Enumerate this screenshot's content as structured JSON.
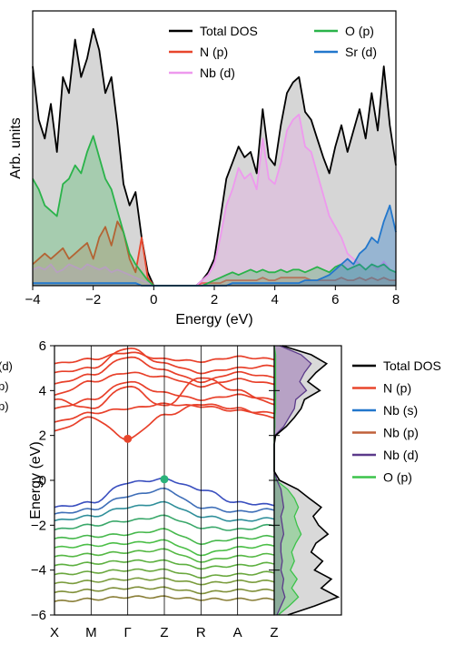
{
  "chart_data": [
    {
      "type": "area",
      "xlabel": "Energy (eV)",
      "ylabel": "Arb. units",
      "xlim": [
        -4,
        8
      ],
      "ylim": [
        0,
        1
      ],
      "xticks": [
        "−4",
        "−2",
        "0",
        "2",
        "4",
        "6",
        "8"
      ],
      "tick_values": [
        -4,
        -2,
        0,
        2,
        4,
        6,
        8
      ],
      "grid": false,
      "legend_position": "top",
      "x": [
        -4.0,
        -3.8,
        -3.6,
        -3.4,
        -3.2,
        -3.0,
        -2.8,
        -2.6,
        -2.4,
        -2.2,
        -2.0,
        -1.8,
        -1.6,
        -1.4,
        -1.2,
        -1.0,
        -0.8,
        -0.6,
        -0.4,
        -0.2,
        0.0,
        0.2,
        0.4,
        0.6,
        0.8,
        1.0,
        1.2,
        1.4,
        1.6,
        1.8,
        2.0,
        2.2,
        2.4,
        2.6,
        2.8,
        3.0,
        3.2,
        3.4,
        3.6,
        3.8,
        4.0,
        4.2,
        4.4,
        4.6,
        4.8,
        5.0,
        5.2,
        5.4,
        5.6,
        5.8,
        6.0,
        6.2,
        6.4,
        6.6,
        6.8,
        7.0,
        7.2,
        7.4,
        7.6,
        7.8,
        8.0
      ],
      "series": [
        {
          "name": "Total DOS",
          "color": "#000000",
          "values": [
            0.82,
            0.62,
            0.55,
            0.68,
            0.5,
            0.78,
            0.72,
            0.92,
            0.78,
            0.85,
            0.96,
            0.88,
            0.72,
            0.78,
            0.6,
            0.38,
            0.3,
            0.35,
            0.18,
            0.05,
            0.0,
            0.0,
            0.0,
            0.0,
            0.0,
            0.0,
            0.0,
            0.0,
            0.02,
            0.05,
            0.1,
            0.25,
            0.4,
            0.46,
            0.52,
            0.48,
            0.5,
            0.42,
            0.66,
            0.48,
            0.45,
            0.6,
            0.72,
            0.76,
            0.78,
            0.65,
            0.62,
            0.55,
            0.48,
            0.42,
            0.52,
            0.6,
            0.5,
            0.58,
            0.66,
            0.55,
            0.72,
            0.58,
            0.82,
            0.6,
            0.45
          ]
        },
        {
          "name": "N (p)",
          "color": "#e8462c",
          "values": [
            0.08,
            0.1,
            0.12,
            0.1,
            0.12,
            0.14,
            0.1,
            0.12,
            0.14,
            0.16,
            0.1,
            0.18,
            0.22,
            0.15,
            0.24,
            0.2,
            0.1,
            0.05,
            0.18,
            0.03,
            0.0,
            0.0,
            0.0,
            0.0,
            0.0,
            0.0,
            0.0,
            0.0,
            0.01,
            0.01,
            0.01,
            0.01,
            0.02,
            0.02,
            0.02,
            0.02,
            0.02,
            0.02,
            0.03,
            0.02,
            0.02,
            0.03,
            0.03,
            0.03,
            0.03,
            0.03,
            0.02,
            0.02,
            0.02,
            0.02,
            0.02,
            0.03,
            0.02,
            0.02,
            0.03,
            0.02,
            0.03,
            0.02,
            0.03,
            0.02,
            0.02
          ]
        },
        {
          "name": "Nb (d)",
          "color": "#ee99ee",
          "values": [
            0.06,
            0.07,
            0.06,
            0.08,
            0.05,
            0.06,
            0.08,
            0.07,
            0.06,
            0.08,
            0.07,
            0.06,
            0.07,
            0.05,
            0.06,
            0.05,
            0.04,
            0.03,
            0.02,
            0.01,
            0.0,
            0.0,
            0.0,
            0.0,
            0.0,
            0.0,
            0.0,
            0.0,
            0.02,
            0.04,
            0.08,
            0.18,
            0.3,
            0.36,
            0.44,
            0.4,
            0.42,
            0.36,
            0.55,
            0.4,
            0.38,
            0.46,
            0.58,
            0.62,
            0.64,
            0.52,
            0.5,
            0.42,
            0.34,
            0.26,
            0.22,
            0.18,
            0.12,
            0.1,
            0.08,
            0.06,
            0.08,
            0.06,
            0.09,
            0.06,
            0.05
          ]
        },
        {
          "name": "O (p)",
          "color": "#2ab34a",
          "values": [
            0.4,
            0.36,
            0.3,
            0.28,
            0.26,
            0.38,
            0.4,
            0.45,
            0.42,
            0.5,
            0.56,
            0.48,
            0.4,
            0.36,
            0.28,
            0.2,
            0.12,
            0.08,
            0.05,
            0.02,
            0.0,
            0.0,
            0.0,
            0.0,
            0.0,
            0.0,
            0.0,
            0.0,
            0.0,
            0.01,
            0.02,
            0.03,
            0.04,
            0.05,
            0.04,
            0.05,
            0.06,
            0.05,
            0.06,
            0.05,
            0.05,
            0.06,
            0.05,
            0.06,
            0.06,
            0.05,
            0.06,
            0.07,
            0.06,
            0.05,
            0.07,
            0.08,
            0.06,
            0.07,
            0.08,
            0.06,
            0.08,
            0.07,
            0.08,
            0.06,
            0.05
          ]
        },
        {
          "name": "Sr (d)",
          "color": "#2277cc",
          "values": [
            0.01,
            0.01,
            0.01,
            0.01,
            0.01,
            0.01,
            0.01,
            0.01,
            0.01,
            0.01,
            0.01,
            0.01,
            0.01,
            0.01,
            0.01,
            0.01,
            0.01,
            0.01,
            0.0,
            0.0,
            0.0,
            0.0,
            0.0,
            0.0,
            0.0,
            0.0,
            0.0,
            0.0,
            0.0,
            0.0,
            0.0,
            0.0,
            0.0,
            0.01,
            0.01,
            0.01,
            0.01,
            0.01,
            0.01,
            0.01,
            0.01,
            0.01,
            0.01,
            0.01,
            0.01,
            0.02,
            0.02,
            0.02,
            0.03,
            0.04,
            0.06,
            0.08,
            0.1,
            0.08,
            0.12,
            0.14,
            0.18,
            0.16,
            0.24,
            0.3,
            0.2
          ]
        }
      ]
    },
    {
      "type": "line",
      "ylabel": "Energy (eV)",
      "ylim": [
        -6,
        6
      ],
      "yticks": [
        "6",
        "4",
        "2",
        "0",
        "−2",
        "−4",
        "−6"
      ],
      "ytick_values": [
        6,
        4,
        2,
        0,
        -2,
        -4,
        -6
      ],
      "kpoints": [
        "X",
        "M",
        "Γ",
        "Z",
        "R",
        "A",
        "Z"
      ],
      "legend_position": "right",
      "legend": [
        {
          "name": "Total DOS",
          "color": "#000000"
        },
        {
          "name": "N (p)",
          "color": "#e8462c"
        },
        {
          "name": "Nb (s)",
          "color": "#2277cc"
        },
        {
          "name": "Nb (p)",
          "color": "#c0603a"
        },
        {
          "name": "Nb (d)",
          "color": "#5b3a8a"
        },
        {
          "name": "O (p)",
          "color": "#3cc34a"
        }
      ],
      "left_clipped_legend": [
        "(d)",
        "p)",
        "p)"
      ],
      "marked_points": [
        {
          "kpoint": "Γ",
          "energy": 1.85,
          "color": "#e8462c"
        },
        {
          "kpoint": "Z",
          "energy": 0.05,
          "color": "#2ab37a"
        }
      ],
      "conduction_bands": [
        [
          5.2,
          5.4,
          5.7,
          5.4,
          5.3,
          5.5,
          5.4
        ],
        [
          4.8,
          5.0,
          5.9,
          5.2,
          4.8,
          5.0,
          5.1
        ],
        [
          4.3,
          4.7,
          5.5,
          4.9,
          4.4,
          4.8,
          4.6
        ],
        [
          3.8,
          4.4,
          4.8,
          4.6,
          4.2,
          4.5,
          4.3
        ],
        [
          3.2,
          3.6,
          4.4,
          3.9,
          3.6,
          3.8,
          3.6
        ],
        [
          2.6,
          3.0,
          3.2,
          3.4,
          3.3,
          3.1,
          3.0
        ],
        [
          2.2,
          2.8,
          1.85,
          2.9,
          3.4,
          3.2,
          2.8
        ],
        [
          3.6,
          3.2,
          4.2,
          3.3,
          4.6,
          4.0,
          3.4
        ]
      ],
      "valence_bands": [
        [
          -1.2,
          -1.0,
          -0.1,
          0.05,
          -0.4,
          -1.0,
          -1.1
        ],
        [
          -1.5,
          -1.3,
          -0.7,
          -0.4,
          -1.2,
          -1.4,
          -1.3
        ],
        [
          -1.8,
          -1.6,
          -1.2,
          -1.0,
          -1.6,
          -1.8,
          -1.7
        ],
        [
          -2.2,
          -2.0,
          -1.8,
          -1.6,
          -2.1,
          -2.2,
          -2.0
        ],
        [
          -2.6,
          -2.5,
          -2.4,
          -2.2,
          -2.8,
          -2.6,
          -2.5
        ],
        [
          -3.0,
          -2.9,
          -2.8,
          -2.7,
          -3.3,
          -3.0,
          -2.9
        ],
        [
          -3.4,
          -3.3,
          -3.2,
          -3.1,
          -3.6,
          -3.4,
          -3.3
        ],
        [
          -3.8,
          -3.7,
          -3.6,
          -3.6,
          -3.9,
          -3.8,
          -3.7
        ],
        [
          -4.2,
          -4.1,
          -4.0,
          -4.0,
          -4.3,
          -4.2,
          -4.1
        ],
        [
          -4.6,
          -4.5,
          -4.4,
          -4.4,
          -4.6,
          -4.5,
          -4.5
        ],
        [
          -5.0,
          -4.9,
          -4.8,
          -4.8,
          -5.0,
          -4.9,
          -4.9
        ],
        [
          -5.4,
          -5.3,
          -5.2,
          -5.2,
          -5.3,
          -5.3,
          -5.3
        ]
      ],
      "dos_energy": [
        6.0,
        5.6,
        5.2,
        4.8,
        4.4,
        4.0,
        3.6,
        3.2,
        2.8,
        2.4,
        2.0,
        1.6,
        1.2,
        0.8,
        0.4,
        0.0,
        -0.4,
        -0.8,
        -1.2,
        -1.6,
        -2.0,
        -2.4,
        -2.8,
        -3.2,
        -3.6,
        -4.0,
        -4.4,
        -4.8,
        -5.2,
        -5.6,
        -6.0
      ],
      "dos_total": [
        0.12,
        0.55,
        0.78,
        0.62,
        0.5,
        0.68,
        0.45,
        0.4,
        0.3,
        0.18,
        0.02,
        0.0,
        0.0,
        0.0,
        0.0,
        0.08,
        0.35,
        0.52,
        0.7,
        0.58,
        0.66,
        0.8,
        0.62,
        0.55,
        0.72,
        0.6,
        0.85,
        0.7,
        0.95,
        0.6,
        0.2
      ],
      "dos_n_p": [
        0.08,
        0.4,
        0.55,
        0.45,
        0.38,
        0.48,
        0.32,
        0.3,
        0.22,
        0.14,
        0.01,
        0.0,
        0.0,
        0.0,
        0.0,
        0.04,
        0.1,
        0.12,
        0.14,
        0.1,
        0.12,
        0.14,
        0.1,
        0.1,
        0.12,
        0.1,
        0.14,
        0.12,
        0.16,
        0.1,
        0.04
      ],
      "dos_o_p": [
        0.0,
        0.02,
        0.02,
        0.02,
        0.02,
        0.02,
        0.02,
        0.02,
        0.01,
        0.01,
        0.0,
        0.0,
        0.0,
        0.0,
        0.0,
        0.03,
        0.2,
        0.3,
        0.36,
        0.3,
        0.34,
        0.4,
        0.32,
        0.26,
        0.3,
        0.24,
        0.34,
        0.26,
        0.36,
        0.22,
        0.06
      ]
    }
  ]
}
